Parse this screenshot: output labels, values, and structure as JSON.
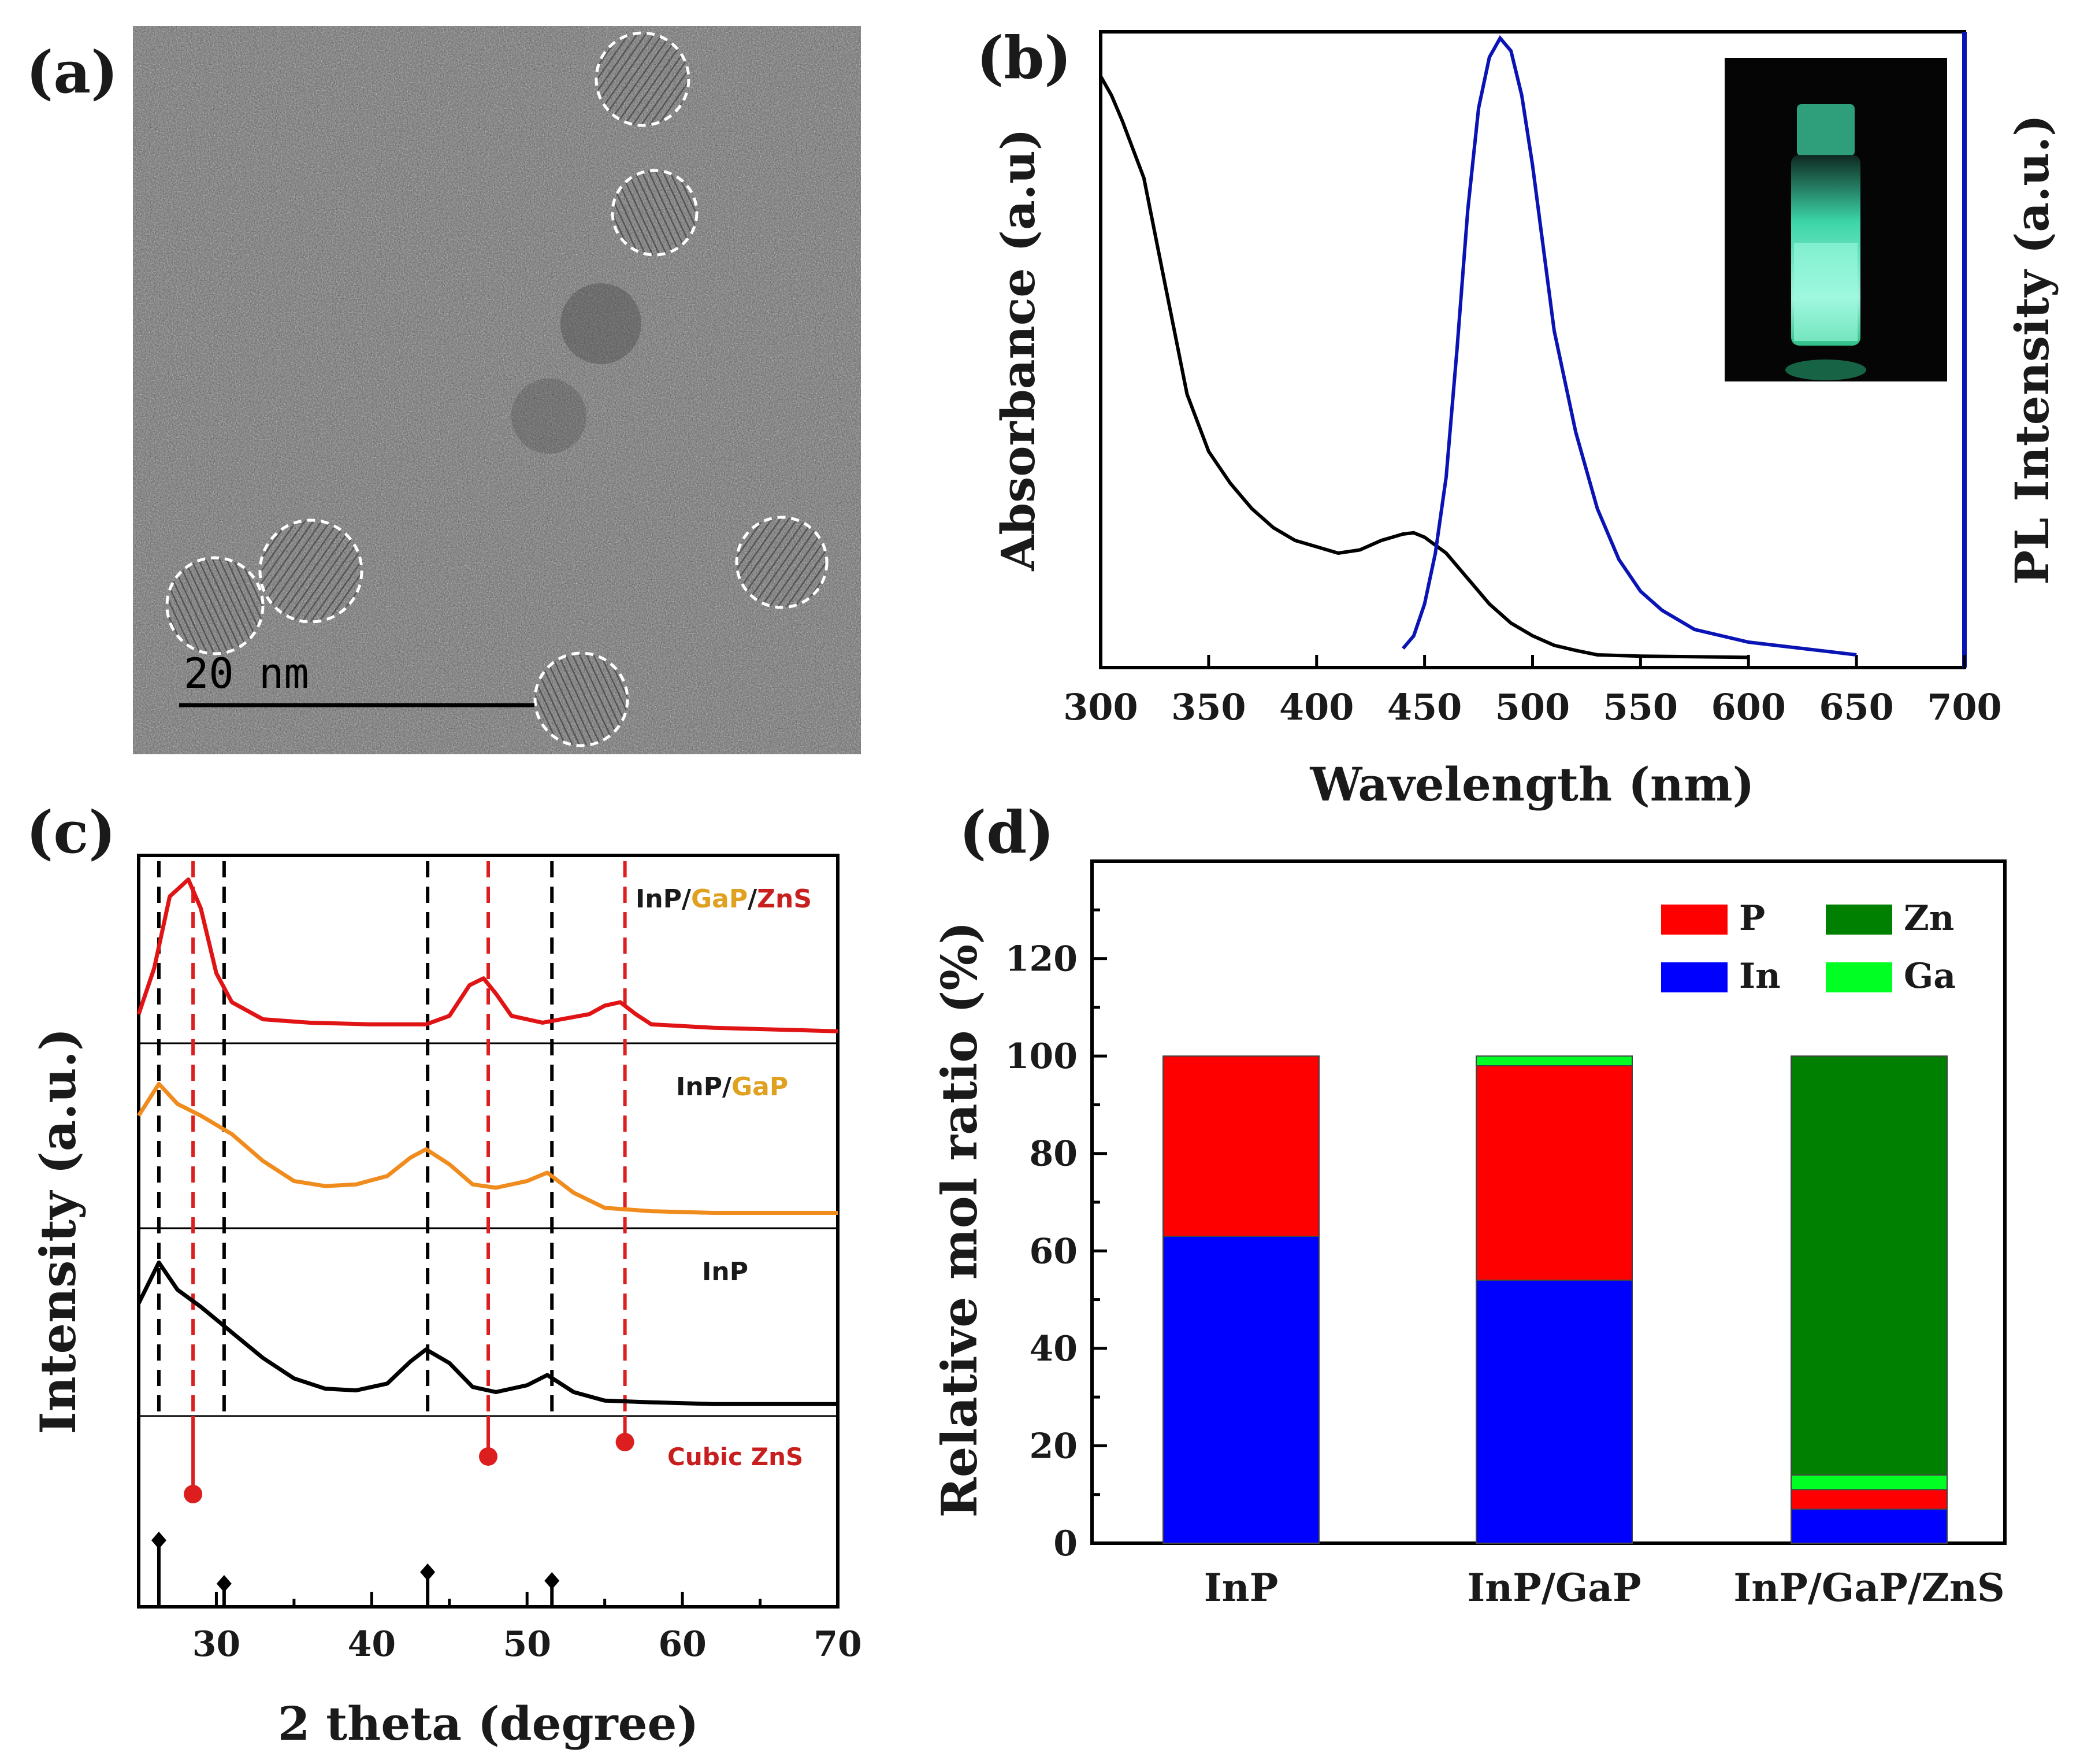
{
  "panels": {
    "a": {
      "label": "(a)",
      "scale_bar_text": "20 nm"
    },
    "b": {
      "label": "(b)"
    },
    "c": {
      "label": "(c)"
    },
    "d": {
      "label": "(d)"
    }
  },
  "colors": {
    "absorbance": "#000000",
    "pl": "#0a14b4",
    "xrd_inp": "#000000",
    "xrd_inp_gap": "#f08c1e",
    "xrd_inp_gap_zns": "#e01414",
    "ref_zns": "#dc1e1e",
    "ref_inp": "#000000",
    "bar_in": "#0000ff",
    "bar_p": "#ff0000",
    "bar_ga": "#00ff22",
    "bar_zn": "#008000",
    "gap_text": "#e0a020",
    "zns_text": "#c81e1e"
  },
  "chart_data": [
    {
      "panel": "b",
      "type": "line",
      "xlabel": "Wavelength (nm)",
      "ylabel_left": "Absorbance (a.u)",
      "ylabel_right": "PL Intensity (a.u.)",
      "xlim": [
        300,
        700
      ],
      "xticks": [
        "300",
        "350",
        "400",
        "450",
        "500",
        "550",
        "600",
        "650",
        "700"
      ],
      "ylim": [
        0,
        1
      ],
      "series": [
        {
          "name": "Absorbance",
          "x": [
            300,
            305,
            310,
            320,
            330,
            340,
            350,
            360,
            370,
            380,
            390,
            400,
            410,
            420,
            430,
            440,
            445,
            450,
            460,
            470,
            480,
            490,
            500,
            510,
            520,
            530,
            550,
            575,
            600
          ],
          "y": [
            0.93,
            0.9,
            0.86,
            0.77,
            0.6,
            0.43,
            0.34,
            0.29,
            0.25,
            0.22,
            0.2,
            0.19,
            0.18,
            0.185,
            0.2,
            0.21,
            0.212,
            0.205,
            0.18,
            0.14,
            0.1,
            0.07,
            0.05,
            0.035,
            0.027,
            0.02,
            0.018,
            0.017,
            0.016
          ]
        },
        {
          "name": "PL",
          "x": [
            440,
            445,
            450,
            455,
            460,
            465,
            470,
            475,
            480,
            485,
            490,
            495,
            500,
            505,
            510,
            520,
            530,
            540,
            550,
            560,
            575,
            600,
            625,
            650
          ],
          "y": [
            0.03,
            0.05,
            0.1,
            0.18,
            0.3,
            0.5,
            0.72,
            0.88,
            0.96,
            0.99,
            0.97,
            0.9,
            0.79,
            0.66,
            0.53,
            0.37,
            0.25,
            0.17,
            0.12,
            0.09,
            0.06,
            0.04,
            0.03,
            0.02
          ]
        }
      ]
    },
    {
      "panel": "c",
      "type": "line",
      "xlabel": "2 theta (degree)",
      "ylabel": "Intensity (a.u.)",
      "xlim": [
        25,
        70
      ],
      "xticks": [
        "30",
        "40",
        "50",
        "60",
        "70"
      ],
      "series": [
        {
          "name": "InP",
          "label_parts": [
            "InP"
          ],
          "x": [
            25,
            26.3,
            27.5,
            29,
            31,
            33,
            35,
            37,
            39,
            41,
            42.5,
            43.5,
            45,
            46.5,
            48,
            50,
            51.3,
            53,
            55,
            58,
            62,
            66,
            70
          ],
          "y": [
            0.62,
            0.86,
            0.7,
            0.6,
            0.45,
            0.3,
            0.18,
            0.12,
            0.11,
            0.15,
            0.28,
            0.35,
            0.27,
            0.13,
            0.1,
            0.14,
            0.2,
            0.1,
            0.05,
            0.04,
            0.03,
            0.03,
            0.03
          ]
        },
        {
          "name": "InP/GaP",
          "label_parts": [
            "InP/",
            "GaP"
          ],
          "x": [
            25,
            26.3,
            27.5,
            29,
            31,
            33,
            35,
            37,
            39,
            41,
            42.5,
            43.5,
            45,
            46.5,
            48,
            50,
            51.3,
            53,
            55,
            58,
            62,
            66,
            70
          ],
          "y": [
            0.63,
            0.82,
            0.7,
            0.63,
            0.52,
            0.36,
            0.24,
            0.21,
            0.22,
            0.27,
            0.38,
            0.43,
            0.34,
            0.22,
            0.2,
            0.24,
            0.29,
            0.17,
            0.08,
            0.06,
            0.05,
            0.05,
            0.05
          ]
        },
        {
          "name": "InP/GaP/ZnS",
          "label_parts": [
            "InP/",
            "GaP",
            "/",
            "ZnS"
          ],
          "x": [
            25,
            26,
            27,
            28.2,
            29,
            30,
            31,
            33,
            36,
            40,
            43.5,
            45,
            46.3,
            47.2,
            48,
            49,
            51,
            54,
            55,
            56,
            57,
            58,
            62,
            66,
            70
          ],
          "y": [
            0.13,
            0.4,
            0.82,
            0.92,
            0.75,
            0.37,
            0.2,
            0.1,
            0.08,
            0.07,
            0.07,
            0.12,
            0.3,
            0.34,
            0.25,
            0.12,
            0.08,
            0.13,
            0.18,
            0.2,
            0.13,
            0.07,
            0.05,
            0.04,
            0.03
          ]
        }
      ],
      "reference": {
        "name": "Cubic ZnS",
        "zns_peaks": [
          28.5,
          47.5,
          56.3
        ],
        "inp_peaks": [
          26.3,
          30.5,
          43.6,
          51.6
        ],
        "dashed_inp": [
          26.3,
          30.5,
          43.6,
          51.6
        ],
        "dashed_zns": [
          28.5,
          47.5,
          56.3
        ]
      }
    },
    {
      "panel": "d",
      "type": "bar",
      "stacked": true,
      "categories": [
        "InP",
        "InP/GaP",
        "InP/GaP/ZnS"
      ],
      "ylabel": "Relative mol ratio (%)",
      "ylim": [
        0,
        140
      ],
      "yticks": [
        "0",
        "20",
        "40",
        "60",
        "80",
        "100",
        "120"
      ],
      "legend": [
        "P",
        "Zn",
        "In",
        "Ga"
      ],
      "series": [
        {
          "name": "In",
          "values": [
            63,
            54,
            7
          ]
        },
        {
          "name": "P",
          "values": [
            37,
            44,
            4
          ]
        },
        {
          "name": "Ga",
          "values": [
            0,
            2,
            3
          ]
        },
        {
          "name": "Zn",
          "values": [
            0,
            0,
            86
          ]
        }
      ]
    }
  ]
}
